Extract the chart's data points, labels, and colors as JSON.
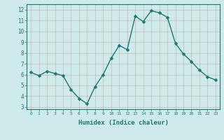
{
  "x": [
    0,
    1,
    2,
    3,
    4,
    5,
    6,
    7,
    8,
    9,
    10,
    11,
    12,
    13,
    14,
    15,
    16,
    17,
    18,
    19,
    20,
    21,
    22,
    23
  ],
  "y": [
    6.2,
    5.9,
    6.3,
    6.1,
    5.9,
    4.6,
    3.8,
    3.3,
    4.9,
    6.0,
    7.5,
    8.7,
    8.3,
    11.4,
    10.9,
    11.9,
    11.7,
    11.3,
    8.9,
    7.9,
    7.2,
    6.4,
    5.8,
    5.5
  ],
  "line_color": "#1a7a6e",
  "marker_color": "#1a7a6e",
  "bg_color": "#ceeaea",
  "grid_color": "#b8d8d8",
  "xlabel": "Humidex (Indice chaleur)",
  "xlim": [
    -0.5,
    23.5
  ],
  "ylim": [
    2.8,
    12.5
  ],
  "yticks": [
    3,
    4,
    5,
    6,
    7,
    8,
    9,
    10,
    11,
    12
  ],
  "xtick_labels": [
    "0",
    "1",
    "2",
    "3",
    "4",
    "5",
    "6",
    "7",
    "8",
    "9",
    "10",
    "11",
    "12",
    "13",
    "14",
    "15",
    "16",
    "17",
    "18",
    "19",
    "20",
    "21",
    "22",
    "23"
  ],
  "tick_color": "#1a7a6e",
  "spine_color": "#1a7a6e",
  "marker_size": 2.5,
  "line_width": 1.0
}
